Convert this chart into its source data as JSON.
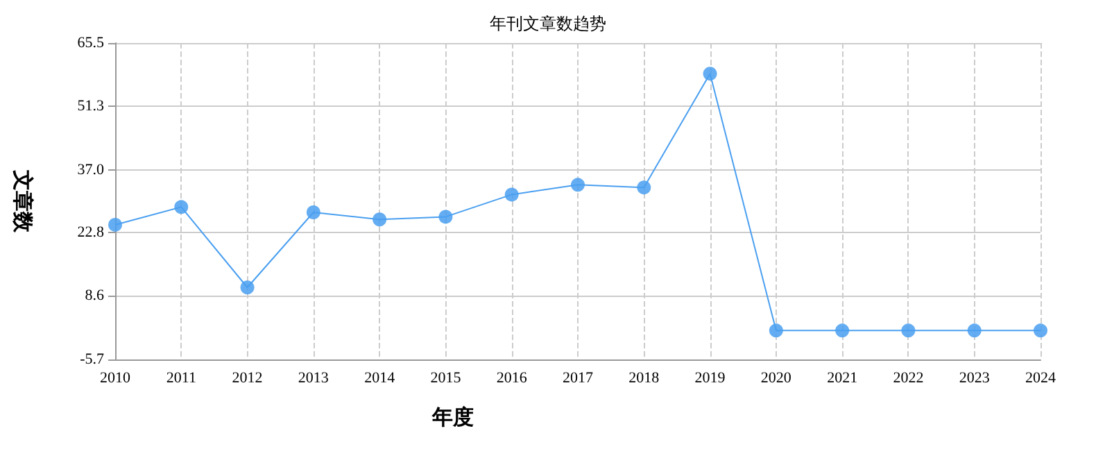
{
  "chart_data": {
    "type": "line",
    "title": "年刊文章数趋势",
    "xlabel": "年度",
    "ylabel": "文章数",
    "categories": [
      "2010",
      "2011",
      "2012",
      "2013",
      "2014",
      "2015",
      "2016",
      "2017",
      "2018",
      "2019",
      "2020",
      "2021",
      "2022",
      "2023",
      "2024"
    ],
    "series": [
      {
        "color": "#4a9ff0",
        "values": [
          24.6,
          28.6,
          10.5,
          27.4,
          25.8,
          26.4,
          31.4,
          33.6,
          33,
          58.6,
          0.8,
          0.8,
          0.8,
          0.8,
          0.8
        ]
      }
    ],
    "ylim": [
      -5.7,
      65.5
    ],
    "yticks": [
      -5.7,
      8.6,
      22.8,
      {
        "value": 37,
        "label": "37.0"
      },
      51.3,
      65.5
    ],
    "grid": true,
    "marker": "circle",
    "line_style": "solid"
  }
}
